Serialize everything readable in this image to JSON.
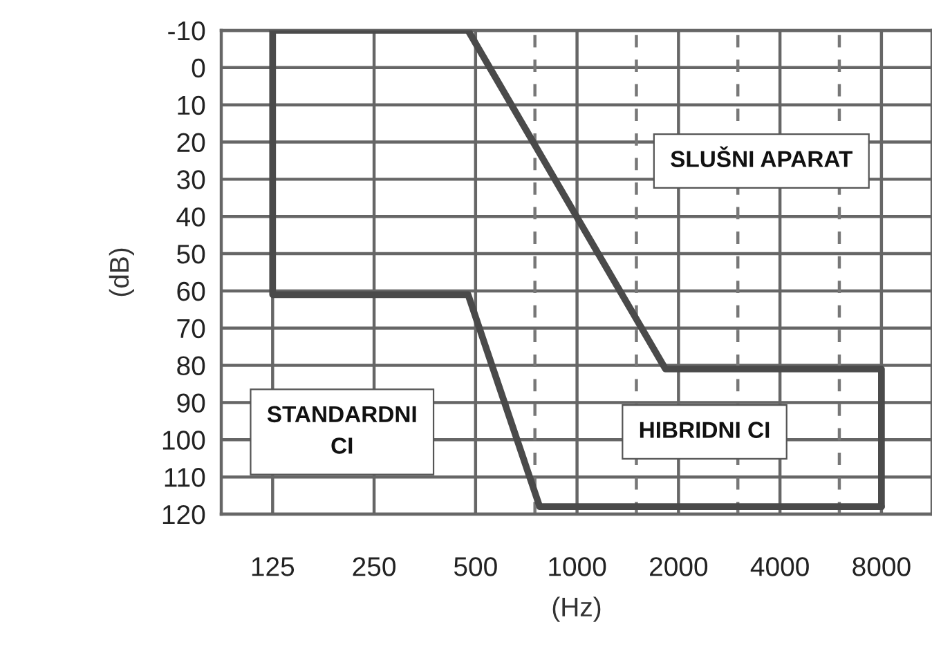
{
  "chart_data": {
    "type": "line",
    "xlabel": "(Hz)",
    "ylabel": "(dB)",
    "log": "x",
    "series": [
      {
        "color": "#4a4a4a",
        "x": [
          125,
          475,
          1830,
          8000,
          8000
        ],
        "values": [
          -10,
          -10,
          81,
          81,
          118
        ]
      },
      {
        "color": "#4a4a4a",
        "x": [
          125,
          125,
          475,
          775,
          8000
        ],
        "values": [
          -10,
          61,
          61,
          118,
          118
        ]
      }
    ],
    "xlim": [
      88,
      11300
    ],
    "xticks": [
      125,
      250,
      500,
      1000,
      2000,
      4000,
      8000
    ],
    "ylim": [
      120,
      -10
    ],
    "yticks": [
      -10,
      0,
      10,
      20,
      30,
      40,
      50,
      60,
      70,
      80,
      90,
      100,
      110,
      120
    ],
    "grid": true,
    "marker": "none",
    "line_style": "solid",
    "ref_lines": [
      {
        "axis": "x",
        "value": 750,
        "color": "#777777",
        "line_style": "dashed"
      },
      {
        "axis": "x",
        "value": 1500,
        "color": "#777777",
        "line_style": "dashed"
      },
      {
        "axis": "x",
        "value": 3000,
        "color": "#777777",
        "line_style": "dashed"
      },
      {
        "axis": "x",
        "value": 6000,
        "color": "#777777",
        "line_style": "dashed"
      }
    ],
    "annotations": [
      "SLUŠNI APARAT",
      "STANDARDNI\nCI",
      "HIBRIDNI CI"
    ]
  }
}
